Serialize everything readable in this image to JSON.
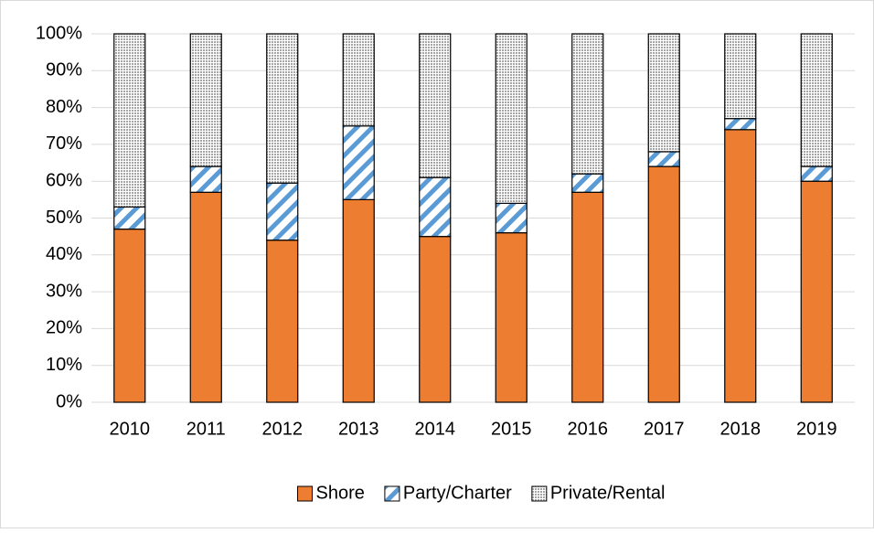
{
  "chart_data": {
    "type": "stacked_bar",
    "categories": [
      "2010",
      "2011",
      "2012",
      "2013",
      "2014",
      "2015",
      "2016",
      "2017",
      "2018",
      "2019"
    ],
    "series": [
      {
        "name": "Shore",
        "color": "#ed7d31",
        "pattern": "solid",
        "values": [
          47,
          57,
          44,
          55,
          45,
          46,
          57,
          64,
          74,
          60
        ]
      },
      {
        "name": "Party/Charter",
        "color": "#5b9bd5",
        "pattern": "diagonal",
        "values": [
          6,
          7,
          15.5,
          20,
          16,
          8,
          5,
          4,
          3,
          4
        ]
      },
      {
        "name": "Private/Rental",
        "color": "#a5a5a5",
        "pattern": "dots",
        "values": [
          47,
          36,
          40.5,
          25,
          39,
          46,
          38,
          32,
          23,
          36
        ]
      }
    ],
    "ylim": [
      0,
      100
    ],
    "yticks": [
      {
        "value": 0,
        "label": "0%"
      },
      {
        "value": 10,
        "label": "10%"
      },
      {
        "value": 20,
        "label": "20%"
      },
      {
        "value": 30,
        "label": "30%"
      },
      {
        "value": 40,
        "label": "40%"
      },
      {
        "value": 50,
        "label": "50%"
      },
      {
        "value": 60,
        "label": "60%"
      },
      {
        "value": 70,
        "label": "70%"
      },
      {
        "value": 80,
        "label": "80%"
      },
      {
        "value": 90,
        "label": "90%"
      },
      {
        "value": 100,
        "label": "100%"
      }
    ],
    "grid": true,
    "legend": "bottom"
  }
}
